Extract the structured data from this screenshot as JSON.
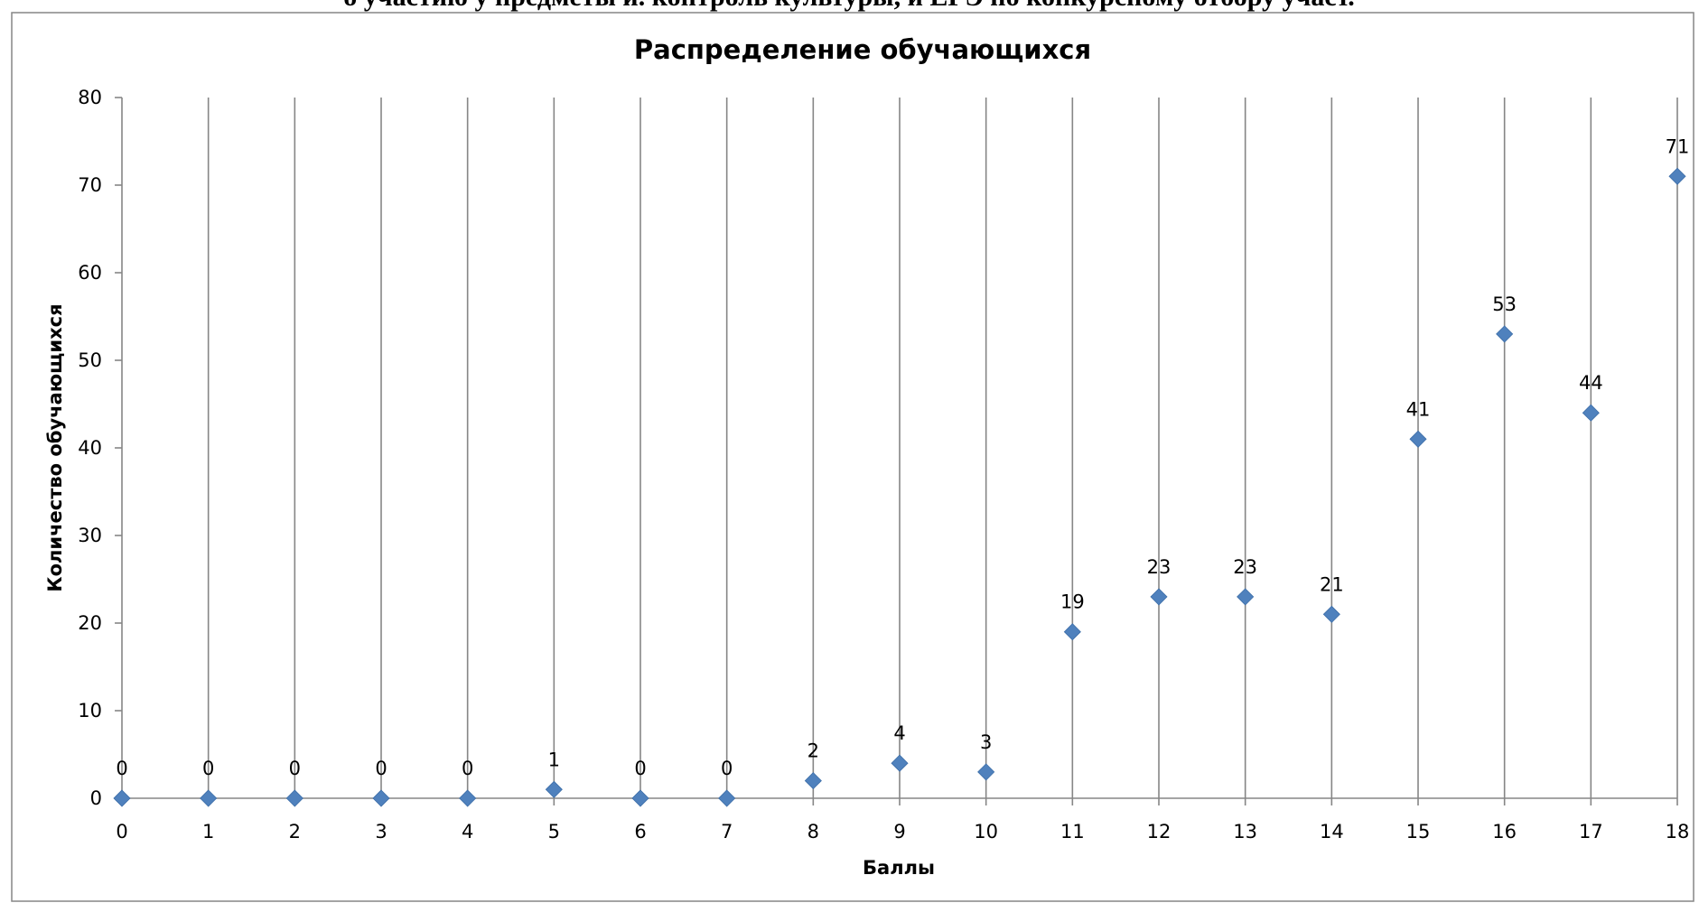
{
  "page": {
    "heading_fragment": "о участию у предметы и. контроль культуры, и ЕГЭ по конкурсному отбору участ."
  },
  "colors": {
    "marker": "#4F81BD",
    "gridline": "#868686",
    "axis": "#868686",
    "frame": "#868686"
  },
  "chart_data": {
    "type": "scatter",
    "title": "Распределение обучающихся",
    "xlabel": "Баллы",
    "ylabel": "Количество обучающихся",
    "xlim": [
      0,
      18
    ],
    "ylim": [
      0,
      80
    ],
    "x_ticks": [
      0,
      1,
      2,
      3,
      4,
      5,
      6,
      7,
      8,
      9,
      10,
      11,
      12,
      13,
      14,
      15,
      16,
      17,
      18
    ],
    "y_ticks": [
      0,
      10,
      20,
      30,
      40,
      50,
      60,
      70,
      80
    ],
    "grid": {
      "vertical": true,
      "horizontal": false
    },
    "legend": "none",
    "marker": "diamond",
    "data_labels": true,
    "points": [
      {
        "x": 0,
        "y": 0
      },
      {
        "x": 1,
        "y": 0
      },
      {
        "x": 2,
        "y": 0
      },
      {
        "x": 3,
        "y": 0
      },
      {
        "x": 4,
        "y": 0
      },
      {
        "x": 5,
        "y": 1
      },
      {
        "x": 6,
        "y": 0
      },
      {
        "x": 7,
        "y": 0
      },
      {
        "x": 8,
        "y": 2
      },
      {
        "x": 9,
        "y": 4
      },
      {
        "x": 10,
        "y": 3
      },
      {
        "x": 11,
        "y": 19
      },
      {
        "x": 12,
        "y": 23
      },
      {
        "x": 13,
        "y": 23
      },
      {
        "x": 14,
        "y": 21
      },
      {
        "x": 15,
        "y": 41
      },
      {
        "x": 16,
        "y": 53
      },
      {
        "x": 17,
        "y": 44
      },
      {
        "x": 18,
        "y": 71
      }
    ]
  }
}
